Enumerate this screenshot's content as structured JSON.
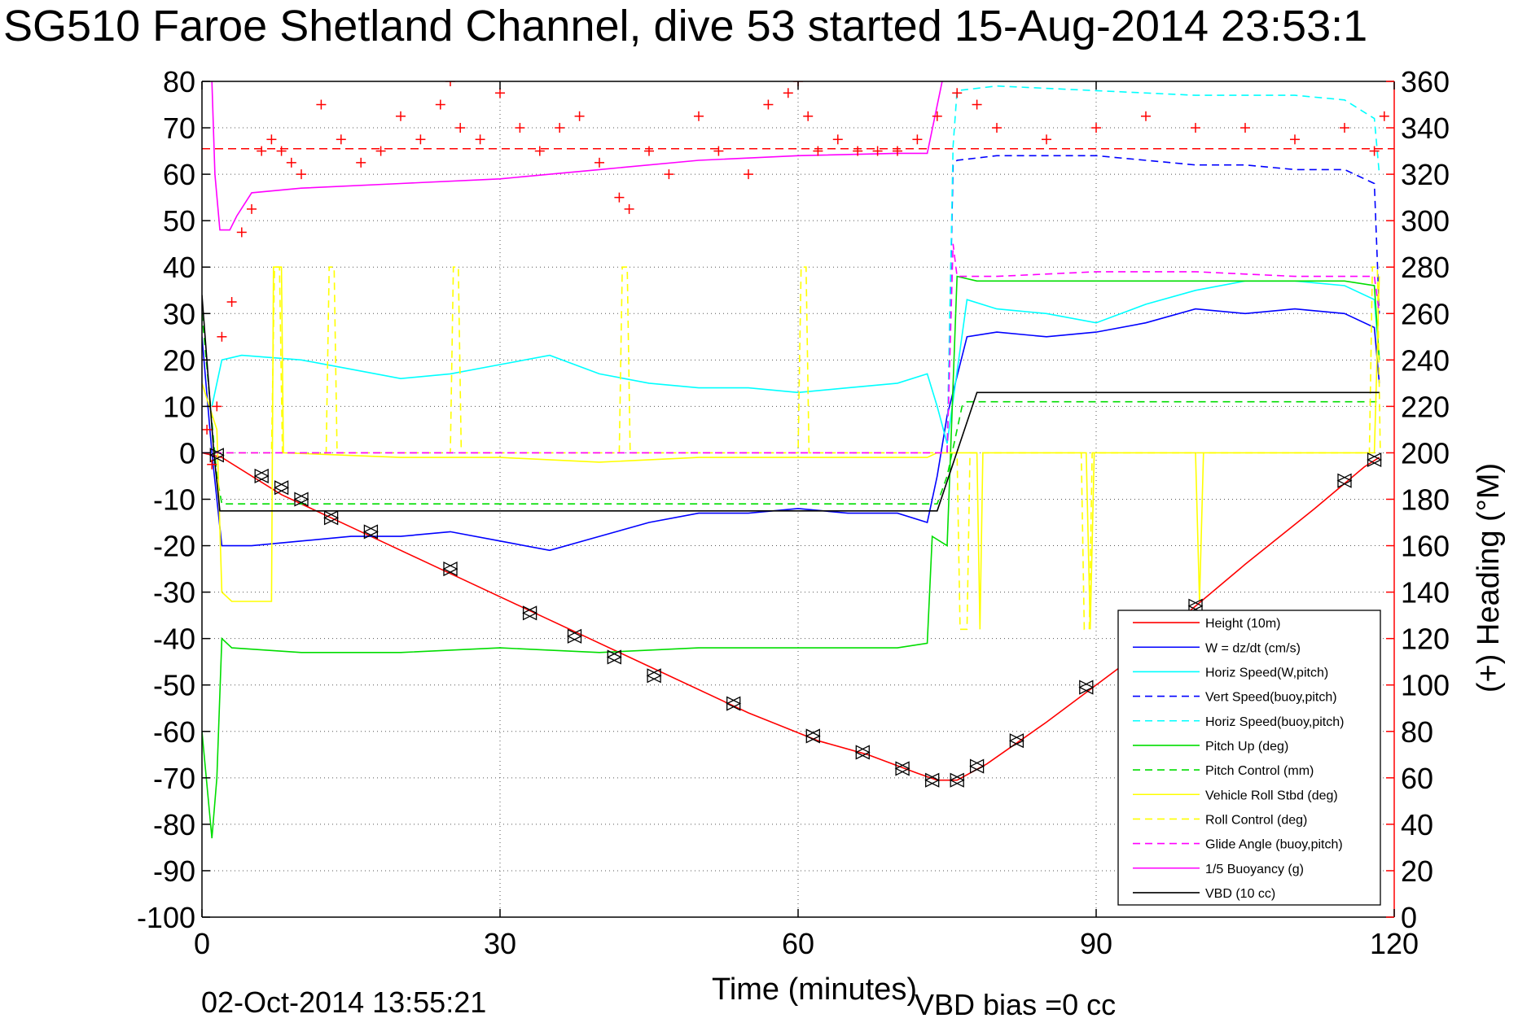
{
  "header": {
    "title": "SG510 Faroe Shetland Channel, dive 53 started 15-Aug-2014 23:53:1"
  },
  "footer": {
    "timestamp": "02-Oct-2014 13:55:21",
    "vbd_bias": "VBD bias =0 cc"
  },
  "chart_data": {
    "type": "line",
    "title": "SG510 Faroe Shetland Channel, dive 53 started 15-Aug-2014 23:53:1",
    "xlabel": "Time (minutes)",
    "ylabel": "",
    "y2label": "(+) Heading (°M)",
    "xlim": [
      0,
      120
    ],
    "ylim": [
      -100,
      80
    ],
    "y2lim": [
      0,
      360
    ],
    "xticks": [
      0,
      30,
      60,
      90,
      120
    ],
    "yticks": [
      80,
      70,
      60,
      50,
      40,
      30,
      20,
      10,
      0,
      -10,
      -20,
      -30,
      -40,
      -50,
      -60,
      -70,
      -80,
      -90,
      -100
    ],
    "y2ticks": [
      360,
      340,
      320,
      300,
      280,
      260,
      240,
      220,
      200,
      180,
      160,
      140,
      120,
      100,
      80,
      60,
      40,
      20,
      0
    ],
    "grid": true,
    "legend_position": "bottom-right",
    "colors": {
      "height": "#ff0000",
      "w": "#0000ff",
      "horiz_speed": "#00ffff",
      "pitch": "#00dd00",
      "roll": "#ffff00",
      "glide": "#ff00ff",
      "buoyancy": "#ff00ff",
      "vbd": "#000000",
      "heading": "#ff0000",
      "right_axis": "#ff0000"
    },
    "series": [
      {
        "name": "Height (10m)",
        "color": "#ff0000",
        "dash": false,
        "x": [
          0,
          2,
          8,
          15,
          25,
          35,
          45,
          55,
          62,
          67,
          72,
          74,
          76,
          79,
          85,
          95,
          105,
          112,
          117,
          118.5
        ],
        "y": [
          0,
          -1,
          -9,
          -16,
          -26,
          -36,
          -46,
          -56,
          -62,
          -65,
          -69,
          -70.5,
          -70.5,
          -67,
          -58,
          -42,
          -24,
          -12,
          -3,
          -1
        ]
      },
      {
        "name": "W = dz/dt (cm/s)",
        "color": "#0000ff",
        "dash": false,
        "x": [
          0,
          1,
          2,
          5,
          10,
          15,
          20,
          25,
          30,
          35,
          40,
          45,
          50,
          55,
          60,
          65,
          70,
          73,
          74,
          75,
          77,
          80,
          85,
          90,
          95,
          100,
          105,
          110,
          115,
          118,
          118.5
        ],
        "y": [
          25,
          0,
          -20,
          -20,
          -19,
          -18,
          -18,
          -17,
          -19,
          -21,
          -18,
          -15,
          -13,
          -13,
          -12,
          -13,
          -13,
          -15,
          -5,
          8,
          25,
          26,
          25,
          26,
          28,
          31,
          30,
          31,
          30,
          27,
          15
        ]
      },
      {
        "name": "Horiz Speed(W,pitch)",
        "color": "#00ffff",
        "dash": false,
        "x": [
          1,
          2,
          4,
          10,
          15,
          20,
          25,
          30,
          35,
          40,
          45,
          50,
          55,
          60,
          65,
          70,
          73,
          74,
          75,
          77,
          80,
          85,
          90,
          95,
          100,
          105,
          110,
          115,
          118,
          118.5
        ],
        "y": [
          10,
          20,
          21,
          20,
          18,
          16,
          17,
          19,
          21,
          17,
          15,
          14,
          14,
          13,
          14,
          15,
          17,
          10,
          2,
          33,
          31,
          30,
          28,
          32,
          35,
          37,
          37,
          36,
          33,
          20
        ]
      },
      {
        "name": "Vert Speed(buoy,pitch)",
        "color": "#0000ff",
        "dash": true,
        "x": [
          75,
          75.6,
          76,
          80,
          85,
          90,
          95,
          100,
          105,
          110,
          115,
          118,
          118.5
        ],
        "y": [
          0,
          62,
          63,
          64,
          64,
          64,
          63,
          62,
          62,
          61,
          61,
          58,
          30
        ]
      },
      {
        "name": "Horiz Speed(buoy,pitch)",
        "color": "#00ffff",
        "dash": true,
        "x": [
          75,
          75.6,
          76,
          80,
          90,
          100,
          110,
          115,
          118,
          118.5
        ],
        "y": [
          0,
          66,
          78,
          79,
          78,
          77,
          77,
          76,
          72,
          60
        ]
      },
      {
        "name": "Pitch Up (deg)",
        "color": "#00dd00",
        "dash": false,
        "x": [
          0,
          1,
          1.5,
          2,
          3,
          10,
          20,
          30,
          40,
          50,
          60,
          70,
          73,
          73.5,
          75,
          76,
          78,
          85,
          95,
          105,
          115,
          118,
          118.5
        ],
        "y": [
          -60,
          -83,
          -70,
          -40,
          -42,
          -43,
          -43,
          -42,
          -43,
          -42,
          -42,
          -42,
          -41,
          -18,
          -20,
          38,
          37,
          37,
          37,
          37,
          37,
          36,
          20
        ]
      },
      {
        "name": "Pitch Control (mm)",
        "color": "#00dd00",
        "dash": true,
        "x": [
          0,
          1.5,
          2,
          74,
          75,
          76.5,
          77,
          118.5
        ],
        "y": [
          30,
          -5,
          -11,
          -11,
          -5,
          10,
          11,
          11
        ]
      },
      {
        "name": "Vehicle Roll Stbd (deg)",
        "color": "#ffff00",
        "dash": false,
        "x": [
          0,
          1.5,
          2,
          3,
          7,
          7.2,
          8,
          8.2,
          20,
          30,
          40,
          50,
          60,
          70,
          73,
          74,
          76,
          78,
          78.3,
          78.6,
          85,
          89,
          89.4,
          89.8,
          95,
          100,
          100.4,
          100.8,
          110,
          118,
          118.5
        ],
        "y": [
          15,
          5,
          -30,
          -32,
          -32,
          40,
          40,
          0,
          -1,
          -1,
          -2,
          -1,
          -1,
          -1,
          -1,
          0,
          0,
          0,
          -38,
          0,
          0,
          0,
          -38,
          0,
          0,
          0,
          -32,
          0,
          0,
          0,
          38
        ]
      },
      {
        "name": "Roll Control (deg)",
        "color": "#ffff00",
        "dash": true,
        "x": [
          0,
          7,
          7.3,
          7.8,
          8.1,
          12.5,
          12.8,
          13.3,
          13.6,
          25,
          25.3,
          25.8,
          26.1,
          42,
          42.3,
          42.8,
          43.1,
          60,
          60.3,
          60.8,
          61.1,
          74,
          76,
          76.3,
          77,
          77.3,
          88.5,
          88.8,
          89.3,
          89.6,
          117.5,
          117.8,
          118.3,
          118.6
        ],
        "y": [
          0,
          0,
          40,
          40,
          0,
          0,
          40,
          40,
          0,
          0,
          40,
          40,
          0,
          0,
          40,
          40,
          0,
          0,
          40,
          40,
          0,
          0,
          0,
          -38,
          -38,
          0,
          0,
          -38,
          -38,
          0,
          0,
          40,
          40,
          0
        ]
      },
      {
        "name": "Glide Angle (buoy,pitch)",
        "color": "#ff00ff",
        "dash": true,
        "x": [
          0,
          74,
          75,
          75.6,
          76,
          80,
          90,
          100,
          110,
          118,
          118.5
        ],
        "y": [
          0,
          0,
          0,
          45,
          38,
          38,
          39,
          39,
          38,
          38,
          30
        ]
      },
      {
        "name": "1/5 Buoyancy (g)",
        "color": "#ff00ff",
        "dash": false,
        "x": [
          1,
          1.3,
          1.8,
          2.8,
          3.5,
          5,
          10,
          20,
          30,
          40,
          50,
          60,
          70,
          73,
          74.5
        ],
        "y": [
          80,
          60,
          48,
          48,
          51,
          56,
          57,
          58,
          59,
          61,
          63,
          64,
          64.5,
          64.5,
          80
        ]
      },
      {
        "name": "VBD (10 cc)",
        "color": "#000000",
        "dash": false,
        "x": [
          0,
          1.2,
          1.8,
          74,
          78,
          118.5
        ],
        "y": [
          34,
          0,
          -12.5,
          -12.5,
          13,
          13
        ]
      }
    ],
    "heading_series": {
      "name": "(+) Heading",
      "axis": "right",
      "marker": "+",
      "color": "#ff0000",
      "x": [
        0.5,
        1,
        1.5,
        2,
        3,
        4,
        5,
        6,
        7,
        8,
        9,
        10,
        12,
        14,
        16,
        18,
        20,
        22,
        24,
        25,
        26,
        28,
        30,
        32,
        34,
        36,
        38,
        40,
        42,
        43,
        45,
        47,
        50,
        52,
        55,
        57,
        59,
        60,
        61,
        62,
        64,
        66,
        68,
        70,
        72,
        74,
        76,
        78,
        80,
        85,
        90,
        95,
        100,
        105,
        110,
        115,
        118,
        119
      ],
      "y": [
        210,
        195,
        220,
        250,
        265,
        295,
        305,
        330,
        335,
        330,
        325,
        320,
        350,
        335,
        325,
        330,
        345,
        335,
        350,
        360,
        340,
        335,
        355,
        340,
        330,
        340,
        345,
        325,
        310,
        305,
        330,
        320,
        345,
        330,
        320,
        350,
        355,
        360,
        345,
        330,
        335,
        330,
        330,
        330,
        335,
        345,
        355,
        350,
        340,
        335,
        340,
        345,
        340,
        340,
        335,
        340,
        330,
        345
      ]
    },
    "reference_line": {
      "name": "heading target",
      "axis": "right",
      "value": 331,
      "color": "#ff0000",
      "dash": true
    },
    "height_markers": {
      "marker": "triangles",
      "x": [
        1.5,
        6,
        8,
        10,
        13,
        17,
        25,
        33,
        37.5,
        41.5,
        45.5,
        53.5,
        61.5,
        66.5,
        70.5,
        73.5,
        76,
        78,
        82,
        89,
        100,
        115,
        118
      ],
      "y": [
        -0.5,
        -5,
        -7.5,
        -10,
        -14,
        -17,
        -25,
        -34.5,
        -39.5,
        -44,
        -48,
        -54,
        -61,
        -64.5,
        -68,
        -70.5,
        -70.5,
        -67.5,
        -62,
        -50.5,
        -33,
        -6,
        -1.5
      ]
    }
  }
}
